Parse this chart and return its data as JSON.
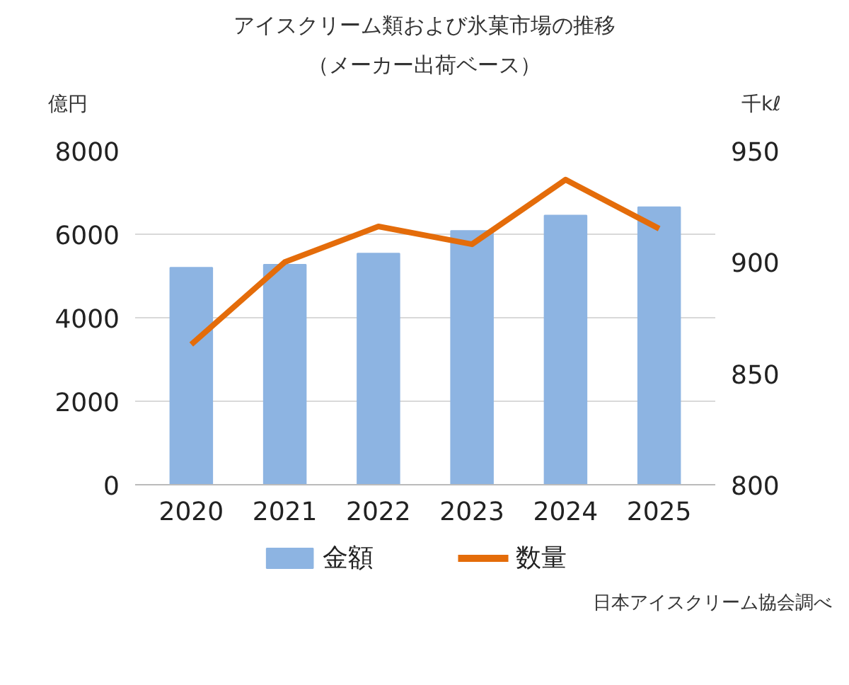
{
  "chart_data": {
    "type": "bar",
    "title": "アイスクリーム類および氷菓市場の推移",
    "subtitle": "（メーカー出荷ベース）",
    "ylabel": "億円",
    "y2label": "千kℓ",
    "categories": [
      "2020",
      "2021",
      "2022",
      "2023",
      "2024",
      "2025"
    ],
    "series": [
      {
        "name": "金額",
        "color": "#8db4e2",
        "values": [
          5200,
          5270,
          5540,
          6080,
          6450,
          6650
        ]
      },
      {
        "name": "数量",
        "type": "line",
        "axis": "y2",
        "color": "#e46c0a",
        "values": [
          863,
          900,
          916,
          908,
          937,
          915
        ]
      }
    ],
    "ylim": [
      0,
      8000
    ],
    "yticks": [
      0,
      2000,
      4000,
      6000,
      8000
    ],
    "y2lim": [
      800,
      950
    ],
    "y2ticks": [
      800,
      850,
      900,
      950
    ],
    "grid": "y",
    "legend": "bottom",
    "marker": "none",
    "line_style": "solid",
    "annotations": [
      "日本アイスクリーム協会調べ"
    ]
  }
}
